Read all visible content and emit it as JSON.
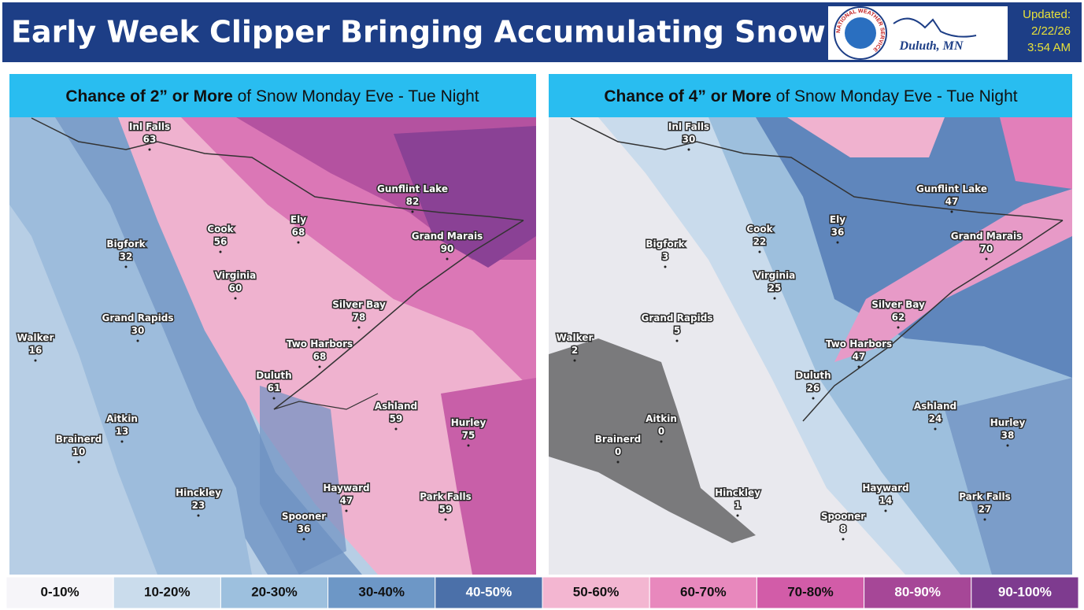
{
  "header": {
    "title": "Early Week Clipper Bringing Accumulating Snow",
    "logo_ring": "NATIONAL WEATHER SERVICE",
    "office": "Duluth, MN",
    "updated_label": "Updated:",
    "updated_date": "2/22/26",
    "updated_time": "3:54 AM"
  },
  "maps": [
    {
      "title_bold": "Chance of 2” or More",
      "title_rest": " of Snow Monday Eve - Tue Night",
      "cities": [
        {
          "name": "Inl Falls",
          "value": 63
        },
        {
          "name": "Gunflint Lake",
          "value": 82
        },
        {
          "name": "Cook",
          "value": 56
        },
        {
          "name": "Ely",
          "value": 68
        },
        {
          "name": "Grand Marais",
          "value": 90
        },
        {
          "name": "Bigfork",
          "value": 32
        },
        {
          "name": "Virginia",
          "value": 60
        },
        {
          "name": "Silver Bay",
          "value": 78
        },
        {
          "name": "Grand Rapids",
          "value": 30
        },
        {
          "name": "Two Harbors",
          "value": 68
        },
        {
          "name": "Walker",
          "value": 16
        },
        {
          "name": "Duluth",
          "value": 61
        },
        {
          "name": "Ashland",
          "value": 59
        },
        {
          "name": "Aitkin",
          "value": 13
        },
        {
          "name": "Hurley",
          "value": 75
        },
        {
          "name": "Brainerd",
          "value": 10
        },
        {
          "name": "Hinckley",
          "value": 23
        },
        {
          "name": "Hayward",
          "value": 47
        },
        {
          "name": "Park Falls",
          "value": 59
        },
        {
          "name": "Spooner",
          "value": 36
        }
      ]
    },
    {
      "title_bold": "Chance of 4” or More",
      "title_rest": " of Snow Monday Eve - Tue Night",
      "cities": [
        {
          "name": "Inl Falls",
          "value": 30
        },
        {
          "name": "Gunflint Lake",
          "value": 47
        },
        {
          "name": "Cook",
          "value": 22
        },
        {
          "name": "Ely",
          "value": 36
        },
        {
          "name": "Grand Marais",
          "value": 70
        },
        {
          "name": "Bigfork",
          "value": 3
        },
        {
          "name": "Virginia",
          "value": 25
        },
        {
          "name": "Silver Bay",
          "value": 62
        },
        {
          "name": "Grand Rapids",
          "value": 5
        },
        {
          "name": "Two Harbors",
          "value": 47
        },
        {
          "name": "Walker",
          "value": 2
        },
        {
          "name": "Duluth",
          "value": 26
        },
        {
          "name": "Ashland",
          "value": 24
        },
        {
          "name": "Aitkin",
          "value": 0
        },
        {
          "name": "Hurley",
          "value": 38
        },
        {
          "name": "Brainerd",
          "value": 0
        },
        {
          "name": "Hinckley",
          "value": 1
        },
        {
          "name": "Hayward",
          "value": 14
        },
        {
          "name": "Park Falls",
          "value": 27
        },
        {
          "name": "Spooner",
          "value": 8
        }
      ]
    }
  ],
  "legend": [
    {
      "label": "0-10%",
      "color": "#f6f5f9"
    },
    {
      "label": "10-20%",
      "color": "#cadcec"
    },
    {
      "label": "20-30%",
      "color": "#9dc0de"
    },
    {
      "label": "30-40%",
      "color": "#6d97c6"
    },
    {
      "label": "40-50%",
      "color": "#4b70a9"
    },
    {
      "label": "50-60%",
      "color": "#f3b6d1"
    },
    {
      "label": "60-70%",
      "color": "#e888bd"
    },
    {
      "label": "70-80%",
      "color": "#d25ca8"
    },
    {
      "label": "80-90%",
      "color": "#a64797"
    },
    {
      "label": "90-100%",
      "color": "#7e3b8f"
    }
  ]
}
